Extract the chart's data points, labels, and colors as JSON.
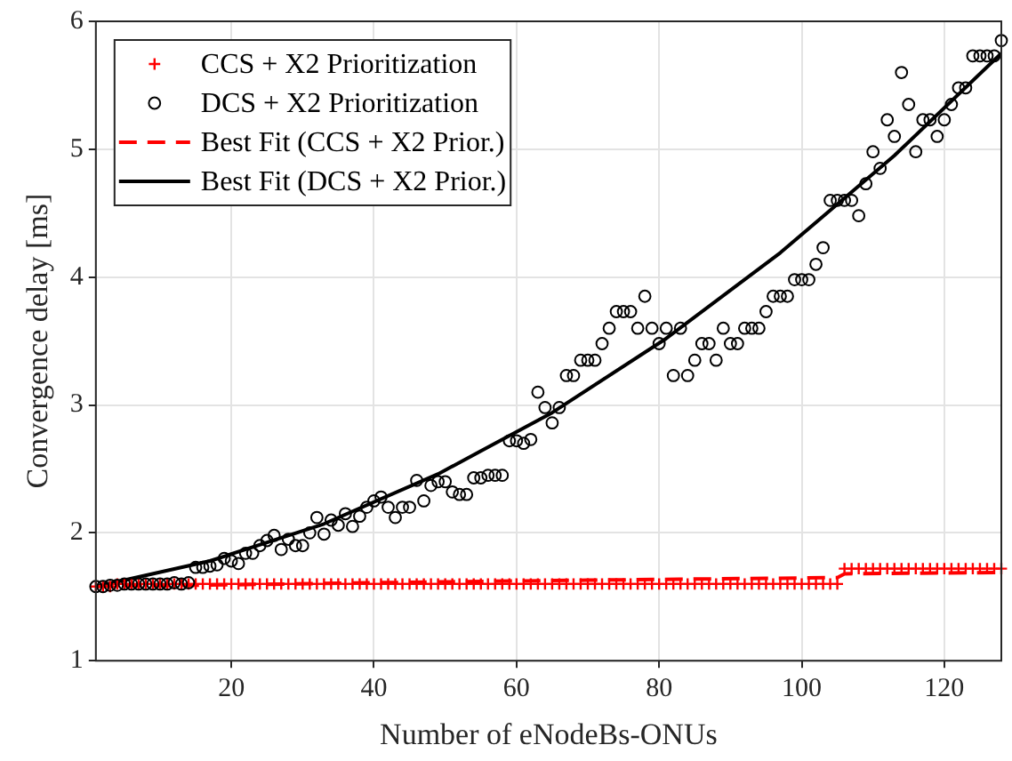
{
  "chart_data": {
    "type": "scatter",
    "xlabel": "Number of eNodeBs-ONUs",
    "ylabel": "Convergence delay [ms]",
    "xlim": [
      1,
      128
    ],
    "xticks": [
      20,
      40,
      60,
      80,
      100,
      120
    ],
    "ylim": [
      1,
      6
    ],
    "yticks": [
      1,
      2,
      3,
      4,
      5,
      6
    ],
    "grid": true,
    "legend": "top left",
    "x": [
      1,
      2,
      3,
      4,
      5,
      6,
      7,
      8,
      9,
      10,
      11,
      12,
      13,
      14,
      15,
      16,
      17,
      18,
      19,
      20,
      21,
      22,
      23,
      24,
      25,
      26,
      27,
      28,
      29,
      30,
      31,
      32,
      33,
      34,
      35,
      36,
      37,
      38,
      39,
      40,
      41,
      42,
      43,
      44,
      45,
      46,
      47,
      48,
      49,
      50,
      51,
      52,
      53,
      54,
      55,
      56,
      57,
      58,
      59,
      60,
      61,
      62,
      63,
      64,
      65,
      66,
      67,
      68,
      69,
      70,
      71,
      72,
      73,
      74,
      75,
      76,
      77,
      78,
      79,
      80,
      81,
      82,
      83,
      84,
      85,
      86,
      87,
      88,
      89,
      90,
      91,
      92,
      93,
      94,
      95,
      96,
      97,
      98,
      99,
      100,
      101,
      102,
      103,
      104,
      105,
      106,
      107,
      108,
      109,
      110,
      111,
      112,
      113,
      114,
      115,
      116,
      117,
      118,
      119,
      120,
      121,
      122,
      123,
      124,
      125,
      126,
      127,
      128
    ],
    "series": [
      {
        "name": "CCS + X2 Prioritization",
        "marker": "cross",
        "color": "#ff0000",
        "values": [
          1.58,
          1.58,
          1.58,
          1.6,
          1.6,
          1.6,
          1.6,
          1.6,
          1.6,
          1.6,
          1.6,
          1.6,
          1.6,
          1.6,
          1.6,
          1.6,
          1.6,
          1.6,
          1.6,
          1.6,
          1.6,
          1.6,
          1.6,
          1.6,
          1.6,
          1.6,
          1.6,
          1.6,
          1.6,
          1.6,
          1.6,
          1.6,
          1.6,
          1.6,
          1.6,
          1.6,
          1.6,
          1.6,
          1.6,
          1.6,
          1.6,
          1.6,
          1.6,
          1.6,
          1.6,
          1.6,
          1.6,
          1.6,
          1.6,
          1.6,
          1.6,
          1.6,
          1.6,
          1.6,
          1.6,
          1.6,
          1.6,
          1.6,
          1.6,
          1.6,
          1.6,
          1.6,
          1.6,
          1.6,
          1.6,
          1.6,
          1.6,
          1.6,
          1.6,
          1.6,
          1.6,
          1.6,
          1.6,
          1.6,
          1.6,
          1.6,
          1.6,
          1.6,
          1.6,
          1.6,
          1.6,
          1.6,
          1.6,
          1.6,
          1.6,
          1.6,
          1.6,
          1.6,
          1.6,
          1.6,
          1.6,
          1.6,
          1.6,
          1.6,
          1.6,
          1.6,
          1.6,
          1.6,
          1.6,
          1.6,
          1.6,
          1.6,
          1.6,
          1.6,
          1.6,
          1.72,
          1.72,
          1.72,
          1.72,
          1.72,
          1.72,
          1.72,
          1.72,
          1.72,
          1.72,
          1.72,
          1.72,
          1.72,
          1.72,
          1.72,
          1.72,
          1.72,
          1.72,
          1.72,
          1.72,
          1.72,
          1.72,
          1.72
        ]
      },
      {
        "name": "DCS + X2 Prioritization",
        "marker": "circle",
        "color": "#000000",
        "values": [
          1.58,
          1.58,
          1.59,
          1.59,
          1.6,
          1.6,
          1.6,
          1.6,
          1.6,
          1.6,
          1.6,
          1.61,
          1.6,
          1.61,
          1.73,
          1.73,
          1.74,
          1.75,
          1.8,
          1.78,
          1.76,
          1.84,
          1.84,
          1.9,
          1.94,
          1.98,
          1.87,
          1.95,
          1.9,
          1.9,
          2.0,
          2.12,
          1.99,
          2.1,
          2.06,
          2.15,
          2.05,
          2.13,
          2.2,
          2.25,
          2.28,
          2.2,
          2.12,
          2.2,
          2.2,
          2.41,
          2.25,
          2.37,
          2.4,
          2.4,
          2.32,
          2.3,
          2.3,
          2.43,
          2.43,
          2.45,
          2.45,
          2.45,
          2.72,
          2.72,
          2.7,
          2.73,
          3.1,
          2.98,
          2.86,
          2.98,
          3.23,
          3.23,
          3.35,
          3.35,
          3.35,
          3.48,
          3.6,
          3.73,
          3.73,
          3.73,
          3.6,
          3.85,
          3.6,
          3.48,
          3.6,
          3.23,
          3.6,
          3.23,
          3.35,
          3.48,
          3.48,
          3.35,
          3.6,
          3.48,
          3.48,
          3.6,
          3.6,
          3.6,
          3.73,
          3.85,
          3.85,
          3.85,
          3.98,
          3.98,
          3.98,
          4.1,
          4.23,
          4.6,
          4.6,
          4.6,
          4.6,
          4.48,
          4.73,
          4.98,
          4.85,
          5.23,
          5.1,
          5.6,
          5.35,
          4.98,
          5.23,
          5.23,
          5.1,
          5.23,
          5.35,
          5.48,
          5.48,
          5.73,
          5.73,
          5.73,
          5.73,
          5.85
        ]
      },
      {
        "name": "Best Fit (CCS + X2 Prior.)",
        "type": "line",
        "marker": "none",
        "line_style": "dashed",
        "color": "#ff0000",
        "x": [
          1,
          15,
          40,
          70,
          105,
          106,
          128
        ],
        "values": [
          1.58,
          1.59,
          1.61,
          1.63,
          1.65,
          1.68,
          1.69
        ]
      },
      {
        "name": "Best Fit (DCS + X2 Prior.)",
        "type": "line",
        "marker": "none",
        "line_style": "solid",
        "color": "#000000",
        "x": [
          1,
          17,
          33,
          49,
          65,
          81,
          97,
          113,
          128
        ],
        "values": [
          1.58,
          1.78,
          2.07,
          2.46,
          2.94,
          3.52,
          4.19,
          4.95,
          5.75
        ]
      }
    ]
  }
}
